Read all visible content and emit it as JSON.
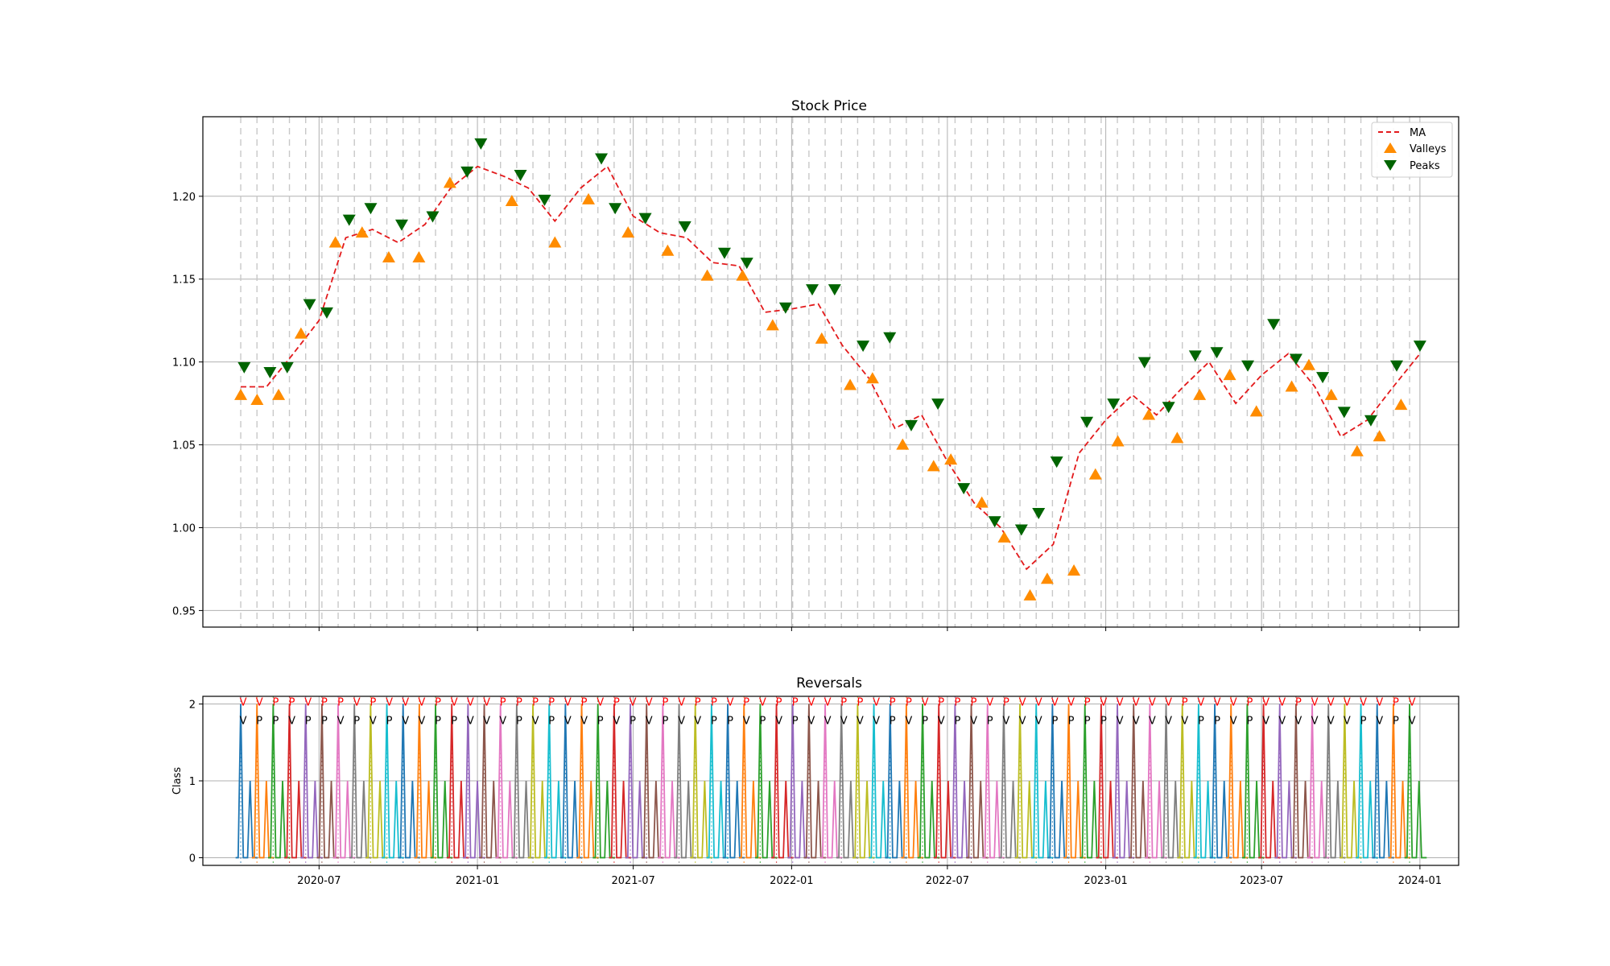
{
  "chart_data": [
    {
      "type": "line",
      "title": "Stock Price",
      "xlabel": "",
      "ylabel": "",
      "xlim": [
        "2020-02-17",
        "2024-02-15"
      ],
      "ylim": [
        0.94,
        1.248
      ],
      "y_ticks": [
        0.95,
        1.0,
        1.05,
        1.1,
        1.15,
        1.2
      ],
      "y_tick_labels": [
        "0.95",
        "1.00",
        "1.05",
        "1.10",
        "1.15",
        "1.20"
      ],
      "x_ticks": [
        "2020-07-01",
        "2021-01-01",
        "2021-07-01",
        "2022-01-01",
        "2022-07-01",
        "2023-01-01",
        "2023-07-01",
        "2024-01-01"
      ],
      "grid": true,
      "legend": {
        "placement": "top-right",
        "entries": [
          "MA",
          "Valleys",
          "Peaks"
        ]
      },
      "series": [
        {
          "name": "MA",
          "style": "dashed",
          "color": "#e31a1c",
          "x": [
            "2020-04-01",
            "2020-05-01",
            "2020-06-01",
            "2020-07-01",
            "2020-08-01",
            "2020-09-01",
            "2020-10-01",
            "2020-11-01",
            "2020-12-01",
            "2021-01-01",
            "2021-02-01",
            "2021-03-01",
            "2021-04-01",
            "2021-05-01",
            "2021-06-01",
            "2021-07-01",
            "2021-08-01",
            "2021-09-01",
            "2021-10-01",
            "2021-11-01",
            "2021-12-01",
            "2022-01-01",
            "2022-02-01",
            "2022-03-01",
            "2022-04-01",
            "2022-05-01",
            "2022-06-01",
            "2022-07-01",
            "2022-08-01",
            "2022-09-01",
            "2022-10-01",
            "2022-11-01",
            "2022-12-01",
            "2023-01-01",
            "2023-02-01",
            "2023-03-01",
            "2023-04-01",
            "2023-05-01",
            "2023-06-01",
            "2023-07-01",
            "2023-08-01",
            "2023-09-01",
            "2023-10-01",
            "2023-11-01",
            "2023-12-01",
            "2024-01-01"
          ],
          "values": [
            1.085,
            1.085,
            1.105,
            1.125,
            1.175,
            1.18,
            1.172,
            1.183,
            1.205,
            1.218,
            1.212,
            1.205,
            1.185,
            1.205,
            1.218,
            1.188,
            1.178,
            1.175,
            1.16,
            1.158,
            1.13,
            1.132,
            1.135,
            1.11,
            1.09,
            1.06,
            1.068,
            1.04,
            1.015,
            1.0,
            0.975,
            0.99,
            1.045,
            1.065,
            1.08,
            1.068,
            1.085,
            1.1,
            1.075,
            1.092,
            1.105,
            1.085,
            1.055,
            1.065,
            1.085,
            1.105
          ]
        },
        {
          "name": "Valleys",
          "marker": "triangle-up",
          "color": "#ff8c00",
          "x": [
            "2020-04-01",
            "2020-04-20",
            "2020-05-15",
            "2020-06-10",
            "2020-07-20",
            "2020-08-20",
            "2020-09-20",
            "2020-10-25",
            "2020-11-30",
            "2021-02-10",
            "2021-04-01",
            "2021-05-10",
            "2021-06-25",
            "2021-08-10",
            "2021-09-25",
            "2021-11-05",
            "2021-12-10",
            "2022-02-05",
            "2022-03-10",
            "2022-04-05",
            "2022-05-10",
            "2022-06-15",
            "2022-07-05",
            "2022-08-10",
            "2022-09-05",
            "2022-10-05",
            "2022-10-25",
            "2022-11-25",
            "2022-12-20",
            "2023-01-15",
            "2023-02-20",
            "2023-03-25",
            "2023-04-20",
            "2023-05-25",
            "2023-06-25",
            "2023-08-05",
            "2023-08-25",
            "2023-09-20",
            "2023-10-20",
            "2023-11-15",
            "2023-12-10"
          ],
          "values": [
            1.08,
            1.077,
            1.08,
            1.117,
            1.172,
            1.178,
            1.163,
            1.163,
            1.208,
            1.197,
            1.172,
            1.198,
            1.178,
            1.167,
            1.152,
            1.152,
            1.122,
            1.114,
            1.086,
            1.09,
            1.05,
            1.037,
            1.041,
            1.015,
            0.994,
            0.959,
            0.969,
            0.974,
            1.032,
            1.052,
            1.068,
            1.054,
            1.08,
            1.092,
            1.07,
            1.085,
            1.098,
            1.08,
            1.046,
            1.055,
            1.074
          ]
        },
        {
          "name": "Peaks",
          "marker": "triangle-down",
          "color": "#006400",
          "x": [
            "2020-04-05",
            "2020-05-05",
            "2020-05-25",
            "2020-06-20",
            "2020-07-10",
            "2020-08-05",
            "2020-08-30",
            "2020-10-05",
            "2020-11-10",
            "2020-12-20",
            "2021-01-05",
            "2021-02-20",
            "2021-03-20",
            "2021-05-25",
            "2021-06-10",
            "2021-07-15",
            "2021-08-30",
            "2021-10-15",
            "2021-11-10",
            "2021-12-25",
            "2022-01-25",
            "2022-02-20",
            "2022-03-25",
            "2022-04-25",
            "2022-05-20",
            "2022-06-20",
            "2022-07-20",
            "2022-08-25",
            "2022-09-25",
            "2022-10-15",
            "2022-11-05",
            "2022-12-10",
            "2023-01-10",
            "2023-02-15",
            "2023-03-15",
            "2023-04-15",
            "2023-05-10",
            "2023-06-15",
            "2023-07-15",
            "2023-08-10",
            "2023-09-10",
            "2023-10-05",
            "2023-11-05",
            "2023-12-05",
            "2024-01-01"
          ],
          "values": [
            1.097,
            1.094,
            1.097,
            1.135,
            1.13,
            1.186,
            1.193,
            1.183,
            1.188,
            1.215,
            1.232,
            1.213,
            1.198,
            1.223,
            1.193,
            1.187,
            1.182,
            1.166,
            1.16,
            1.133,
            1.144,
            1.144,
            1.11,
            1.115,
            1.062,
            1.075,
            1.024,
            1.004,
            0.999,
            1.009,
            1.04,
            1.064,
            1.075,
            1.1,
            1.073,
            1.104,
            1.106,
            1.098,
            1.123,
            1.102,
            1.091,
            1.07,
            1.065,
            1.098,
            1.11
          ]
        }
      ]
    },
    {
      "type": "line",
      "title": "Reversals",
      "xlabel": "",
      "ylabel": "Class",
      "xlim": [
        "2020-02-17",
        "2024-02-15"
      ],
      "ylim": [
        -0.1,
        2.1
      ],
      "y_ticks": [
        0,
        1,
        2
      ],
      "y_tick_labels": [
        "0",
        "1",
        "2"
      ],
      "x_ticks": [
        "2020-07-01",
        "2021-01-01",
        "2021-07-01",
        "2022-01-01",
        "2022-07-01",
        "2023-01-01",
        "2023-07-01",
        "2024-01-01"
      ],
      "x_tick_labels": [
        "2020-07",
        "2021-01",
        "2021-07",
        "2022-01",
        "2022-07",
        "2023-01",
        "2023-07",
        "2024-01"
      ],
      "grid": true,
      "annotations": {
        "actual_row_color": "#ff0000",
        "predicted_row_color": "#000000",
        "actual": [
          "V",
          "V",
          "P",
          "P",
          "V",
          "P",
          "P",
          "V",
          "P",
          "V",
          "V",
          "V",
          "P",
          "V",
          "V",
          "V",
          "P",
          "P",
          "P",
          "P",
          "V",
          "P",
          "V",
          "P",
          "V",
          "V",
          "P",
          "V",
          "P",
          "P",
          "V",
          "P",
          "V",
          "P",
          "P",
          "V",
          "V",
          "P",
          "P",
          "V",
          "P",
          "P",
          "V",
          "P",
          "P",
          "P",
          "V",
          "P",
          "V",
          "V",
          "V",
          "V",
          "P",
          "V",
          "V",
          "V",
          "V",
          "V",
          "P",
          "V",
          "V",
          "V",
          "P",
          "V",
          "V",
          "P",
          "V",
          "V",
          "V",
          "V",
          "V",
          "P",
          "V"
        ],
        "predicted": [
          "V",
          "P",
          "P",
          "V",
          "P",
          "P",
          "V",
          "P",
          "V",
          "P",
          "V",
          "V",
          "P",
          "P",
          "V",
          "V",
          "V",
          "P",
          "V",
          "P",
          "V",
          "V",
          "P",
          "V",
          "P",
          "V",
          "P",
          "V",
          "V",
          "P",
          "P",
          "V",
          "P",
          "V",
          "P",
          "V",
          "V",
          "V",
          "V",
          "V",
          "P",
          "V",
          "P",
          "V",
          "P",
          "V",
          "P",
          "V",
          "V",
          "V",
          "P",
          "P",
          "P",
          "P",
          "V",
          "V",
          "V",
          "V",
          "V",
          "P",
          "P",
          "V",
          "P",
          "V",
          "V",
          "V",
          "V",
          "V",
          "V",
          "P",
          "V",
          "P",
          "V"
        ]
      },
      "color_cycle": [
        "#1f77b4",
        "#ff7f0e",
        "#2ca02c",
        "#d62728",
        "#9467bd",
        "#8c564b",
        "#e377c2",
        "#7f7f7f",
        "#bcbd22",
        "#17becf"
      ]
    }
  ]
}
